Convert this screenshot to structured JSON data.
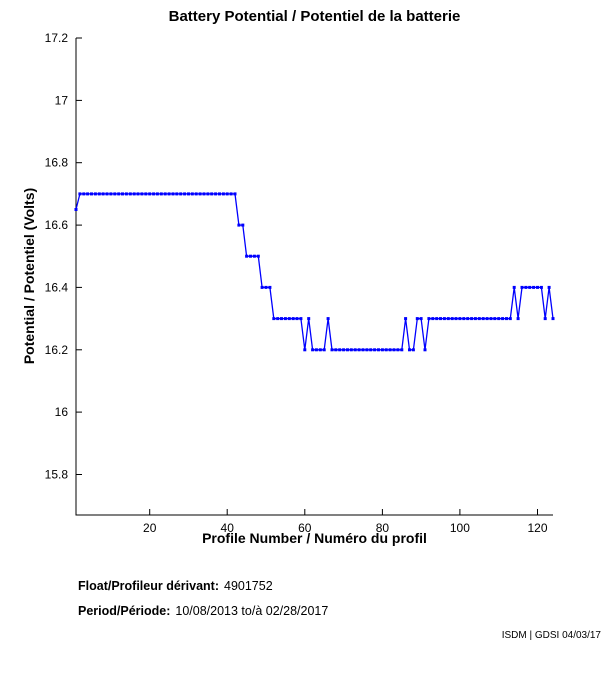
{
  "title": "Battery Potential / Potentiel de la batterie",
  "axes": {
    "x_label": "Profile Number / Numéro du profil",
    "y_label": "Potential / Potentiel (Volts)"
  },
  "footer": {
    "float_label": "Float/Profileur dérivant:",
    "float_value": "4901752",
    "period_label": "Period/Période:",
    "period_value": "10/08/2013 to/à  02/28/2017",
    "credit": "ISDM | GDSI 04/03/17"
  },
  "colors": {
    "series": "#0000FF",
    "axis": "#000000",
    "text": "#000000",
    "background": "#FFFFFF"
  },
  "chart_data": {
    "type": "line",
    "title": "Battery Potential / Potentiel de la batterie",
    "xlabel": "Profile Number / Numéro du profil",
    "ylabel": "Potential / Potentiel (Volts)",
    "grid": false,
    "legend": "none",
    "marker": "dot",
    "xlim": [
      1,
      124
    ],
    "ylim": [
      15.67,
      17.2
    ],
    "x_ticks": [
      20,
      40,
      60,
      80,
      100,
      120
    ],
    "y_ticks": [
      15.8,
      16,
      16.2,
      16.4,
      16.6,
      16.8,
      17,
      17.2
    ],
    "x_start": 1,
    "x_step": 1,
    "values": [
      16.65,
      16.7,
      16.7,
      16.7,
      16.7,
      16.7,
      16.7,
      16.7,
      16.7,
      16.7,
      16.7,
      16.7,
      16.7,
      16.7,
      16.7,
      16.7,
      16.7,
      16.7,
      16.7,
      16.7,
      16.7,
      16.7,
      16.7,
      16.7,
      16.7,
      16.7,
      16.7,
      16.7,
      16.7,
      16.7,
      16.7,
      16.7,
      16.7,
      16.7,
      16.7,
      16.7,
      16.7,
      16.7,
      16.7,
      16.7,
      16.7,
      16.7,
      16.6,
      16.6,
      16.5,
      16.5,
      16.5,
      16.5,
      16.4,
      16.4,
      16.4,
      16.3,
      16.3,
      16.3,
      16.3,
      16.3,
      16.3,
      16.3,
      16.3,
      16.2,
      16.3,
      16.2,
      16.2,
      16.2,
      16.2,
      16.3,
      16.2,
      16.2,
      16.2,
      16.2,
      16.2,
      16.2,
      16.2,
      16.2,
      16.2,
      16.2,
      16.2,
      16.2,
      16.2,
      16.2,
      16.2,
      16.2,
      16.2,
      16.2,
      16.2,
      16.3,
      16.2,
      16.2,
      16.3,
      16.3,
      16.2,
      16.3,
      16.3,
      16.3,
      16.3,
      16.3,
      16.3,
      16.3,
      16.3,
      16.3,
      16.3,
      16.3,
      16.3,
      16.3,
      16.3,
      16.3,
      16.3,
      16.3,
      16.3,
      16.3,
      16.3,
      16.3,
      16.3,
      16.4,
      16.3,
      16.4,
      16.4,
      16.4,
      16.4,
      16.4,
      16.4,
      16.3,
      16.4,
      16.3
    ]
  }
}
